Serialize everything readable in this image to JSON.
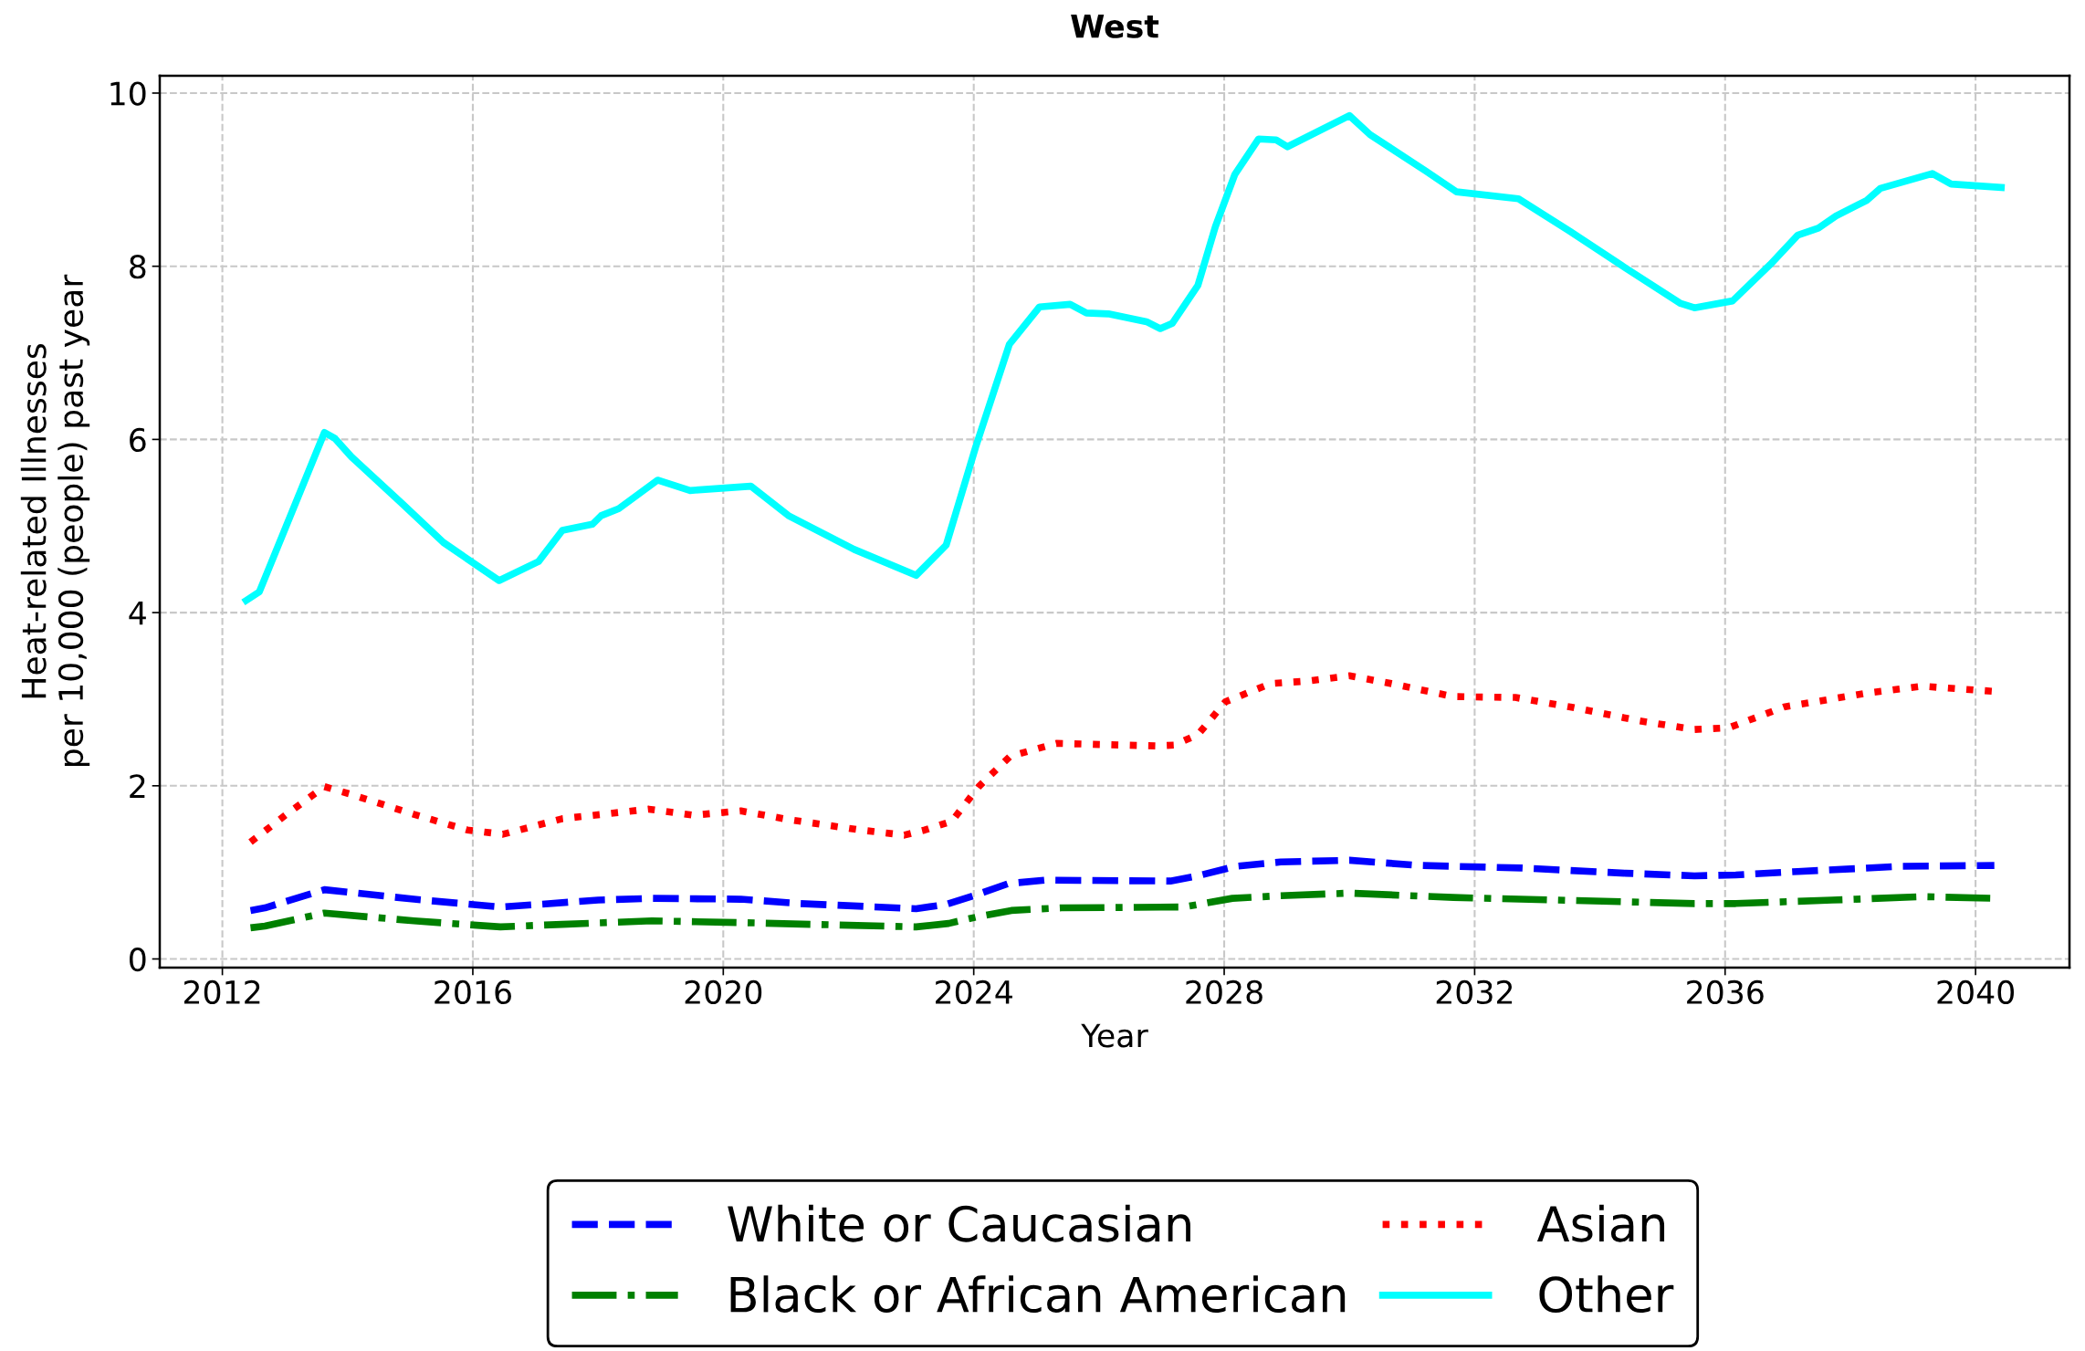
{
  "chart_data": {
    "type": "line",
    "title": "West",
    "xlabel": "Year",
    "ylabel": "Heat-related Illnesses\nper 10,000 (people) past year",
    "xlim": [
      2011.0,
      2041.5
    ],
    "ylim": [
      -0.1,
      10.2
    ],
    "xticks": [
      2012,
      2016,
      2020,
      2024,
      2028,
      2032,
      2036,
      2040
    ],
    "yticks": [
      0,
      2,
      4,
      6,
      8,
      10
    ],
    "grid": true,
    "legend": "bottom",
    "series": [
      {
        "name": "White or Caucasian",
        "color": "#0000ff",
        "line_style": "dashed",
        "x": [
          2012.45,
          2012.68,
          2013.63,
          2015.06,
          2016.44,
          2017.05,
          2018.0,
          2018.86,
          2020.28,
          2021.23,
          2023.08,
          2023.56,
          2024.08,
          2024.55,
          2025.14,
          2027.14,
          2027.58,
          2028.19,
          2028.9,
          2030.0,
          2031.11,
          2032.76,
          2034.41,
          2035.51,
          2036.17,
          2037.16,
          2038.81,
          2040.3
        ],
        "values": [
          0.56,
          0.59,
          0.8,
          0.69,
          0.6,
          0.63,
          0.68,
          0.7,
          0.69,
          0.64,
          0.58,
          0.63,
          0.75,
          0.87,
          0.91,
          0.9,
          0.96,
          1.07,
          1.12,
          1.14,
          1.08,
          1.05,
          0.99,
          0.96,
          0.97,
          1.01,
          1.07,
          1.08
        ]
      },
      {
        "name": "Black or African American",
        "color": "#008000",
        "line_style": "dashdot",
        "x": [
          2012.45,
          2012.68,
          2013.63,
          2015.06,
          2016.44,
          2017.43,
          2018.86,
          2020.28,
          2023.08,
          2023.6,
          2024.08,
          2024.6,
          2025.4,
          2027.36,
          2028.13,
          2028.9,
          2030.0,
          2031.66,
          2033.31,
          2035.51,
          2036.17,
          2037.71,
          2039.15,
          2040.3
        ],
        "values": [
          0.36,
          0.38,
          0.53,
          0.44,
          0.37,
          0.4,
          0.44,
          0.42,
          0.37,
          0.41,
          0.49,
          0.56,
          0.59,
          0.6,
          0.7,
          0.73,
          0.76,
          0.71,
          0.68,
          0.64,
          0.64,
          0.68,
          0.72,
          0.7
        ]
      },
      {
        "name": "Asian",
        "color": "#ff0000",
        "line_style": "dotted",
        "x": [
          2012.45,
          2013.06,
          2013.63,
          2014.06,
          2015.06,
          2015.91,
          2016.48,
          2017.43,
          2018.81,
          2019.52,
          2020.28,
          2021.04,
          2022.18,
          2022.89,
          2023.22,
          2023.65,
          2024.08,
          2024.58,
          2025.32,
          2026.92,
          2027.2,
          2027.58,
          2028.02,
          2028.74,
          2029.34,
          2030.0,
          2030.67,
          2031.66,
          2032.65,
          2033.53,
          2034.63,
          2035.51,
          2036.06,
          2036.94,
          2038.26,
          2039.15,
          2040.3
        ],
        "values": [
          1.35,
          1.69,
          1.99,
          1.9,
          1.67,
          1.49,
          1.44,
          1.62,
          1.73,
          1.66,
          1.71,
          1.61,
          1.49,
          1.43,
          1.49,
          1.59,
          1.99,
          2.34,
          2.49,
          2.46,
          2.47,
          2.59,
          2.97,
          3.18,
          3.21,
          3.27,
          3.18,
          3.03,
          3.02,
          2.91,
          2.75,
          2.65,
          2.67,
          2.91,
          3.07,
          3.15,
          3.09
        ]
      },
      {
        "name": "Other",
        "color": "#00ffff",
        "line_style": "solid",
        "x": [
          2012.38,
          2012.59,
          2013.63,
          2013.8,
          2014.06,
          2014.87,
          2015.53,
          2016.42,
          2017.05,
          2017.43,
          2017.91,
          2018.05,
          2018.33,
          2018.95,
          2019.47,
          2020.44,
          2021.04,
          2022.09,
          2023.08,
          2023.56,
          2024.03,
          2024.57,
          2025.05,
          2025.54,
          2025.8,
          2026.15,
          2026.76,
          2026.98,
          2027.17,
          2027.58,
          2027.86,
          2028.17,
          2028.55,
          2028.83,
          2029.01,
          2030.0,
          2030.33,
          2031.22,
          2031.71,
          2032.7,
          2033.53,
          2034.41,
          2035.29,
          2035.51,
          2036.12,
          2036.72,
          2037.16,
          2037.49,
          2037.77,
          2038.26,
          2038.48,
          2039.31,
          2039.61,
          2040.41
        ],
        "values": [
          4.14,
          4.24,
          6.08,
          6.01,
          5.8,
          5.26,
          4.81,
          4.37,
          4.59,
          4.95,
          5.02,
          5.12,
          5.2,
          5.53,
          5.41,
          5.46,
          5.12,
          4.73,
          4.43,
          4.78,
          5.91,
          7.1,
          7.53,
          7.56,
          7.46,
          7.45,
          7.36,
          7.28,
          7.34,
          7.78,
          8.46,
          9.06,
          9.47,
          9.46,
          9.38,
          9.74,
          9.52,
          9.1,
          8.86,
          8.78,
          8.4,
          7.98,
          7.57,
          7.52,
          7.6,
          8.02,
          8.36,
          8.44,
          8.58,
          8.76,
          8.9,
          9.07,
          8.95,
          8.91
        ]
      }
    ]
  }
}
